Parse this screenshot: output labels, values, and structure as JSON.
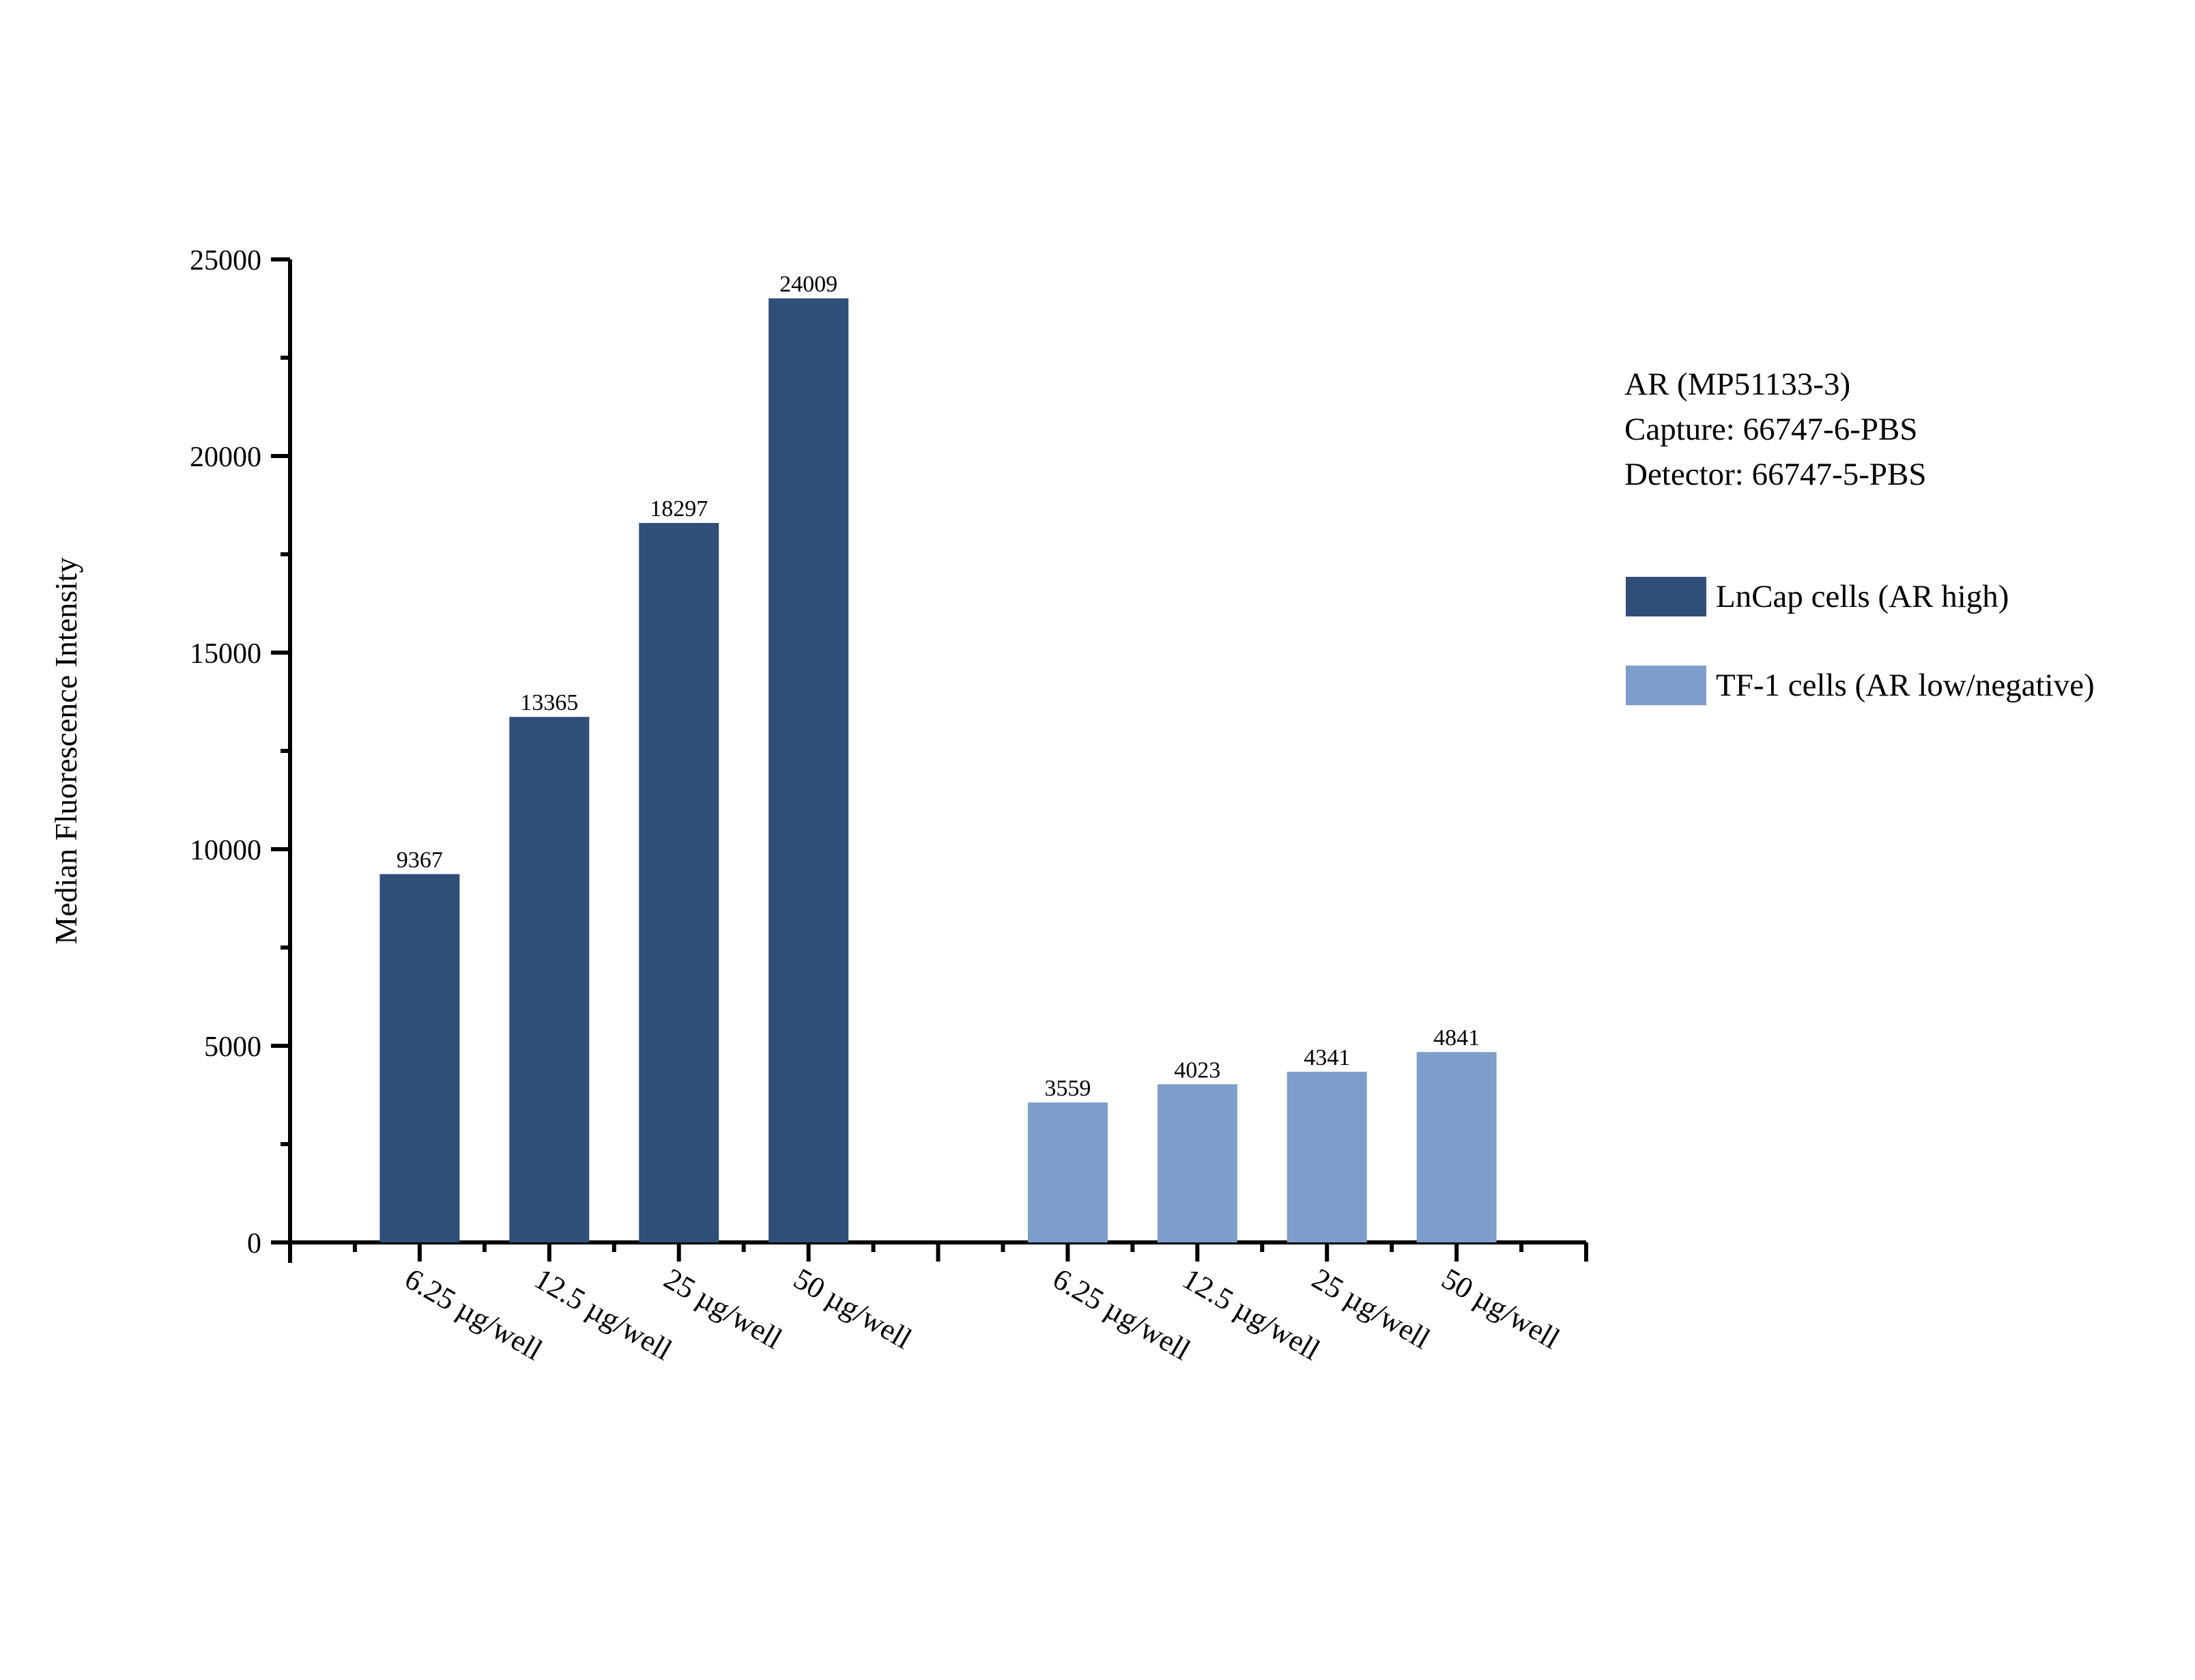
{
  "chart_data": {
    "type": "bar",
    "title": "",
    "xlabel": "",
    "ylabel": "Median Fluorescence Intensity",
    "ylim": [
      0,
      25000
    ],
    "yticks": [
      0,
      5000,
      10000,
      15000,
      20000,
      25000
    ],
    "ytick_labels": [
      "0",
      "5000",
      "10000",
      "15000",
      "20000",
      "25000"
    ],
    "grid": false,
    "legend_position": "right",
    "groups": [
      {
        "name": "LnCap cells (AR high)",
        "color": "#2F4F78",
        "categories": [
          "6.25 µg/well",
          "12.5 µg/well",
          "25 µg/well",
          "50 µg/well"
        ],
        "values": [
          9367,
          13365,
          18297,
          24009
        ]
      },
      {
        "name": "TF-1 cells (AR low/negative)",
        "color": "#7D9ECB",
        "categories": [
          "6.25 µg/well",
          "12.5 µg/well",
          "25 µg/well",
          "50 µg/well"
        ],
        "values": [
          3559,
          4023,
          4341,
          4841
        ]
      }
    ],
    "categories": [
      "6.25 µg/well",
      "12.5 µg/well",
      "25 µg/well",
      "50 µg/well",
      "6.25 µg/well",
      "12.5 µg/well",
      "25 µg/well",
      "50 µg/well"
    ],
    "series": [
      {
        "name": "LnCap cells (AR high)",
        "values": [
          9367,
          13365,
          18297,
          24009,
          null,
          null,
          null,
          null
        ]
      },
      {
        "name": "TF-1 cells (AR low/negative)",
        "values": [
          null,
          null,
          null,
          null,
          3559,
          4023,
          4341,
          4841
        ]
      }
    ],
    "annotations": [
      "AR (MP51133-3)",
      "Capture: 66747-6-PBS",
      "Detector: 66747-5-PBS"
    ]
  },
  "info": {
    "line1": "AR (MP51133-3)",
    "line2": "Capture: 66747-6-PBS",
    "line3": "Detector: 66747-5-PBS"
  },
  "legend": {
    "items": [
      {
        "label": "LnCap cells (AR high)",
        "color": "#2F4F78"
      },
      {
        "label": "TF-1 cells (AR low/negative)",
        "color": "#7D9ECB"
      }
    ]
  }
}
